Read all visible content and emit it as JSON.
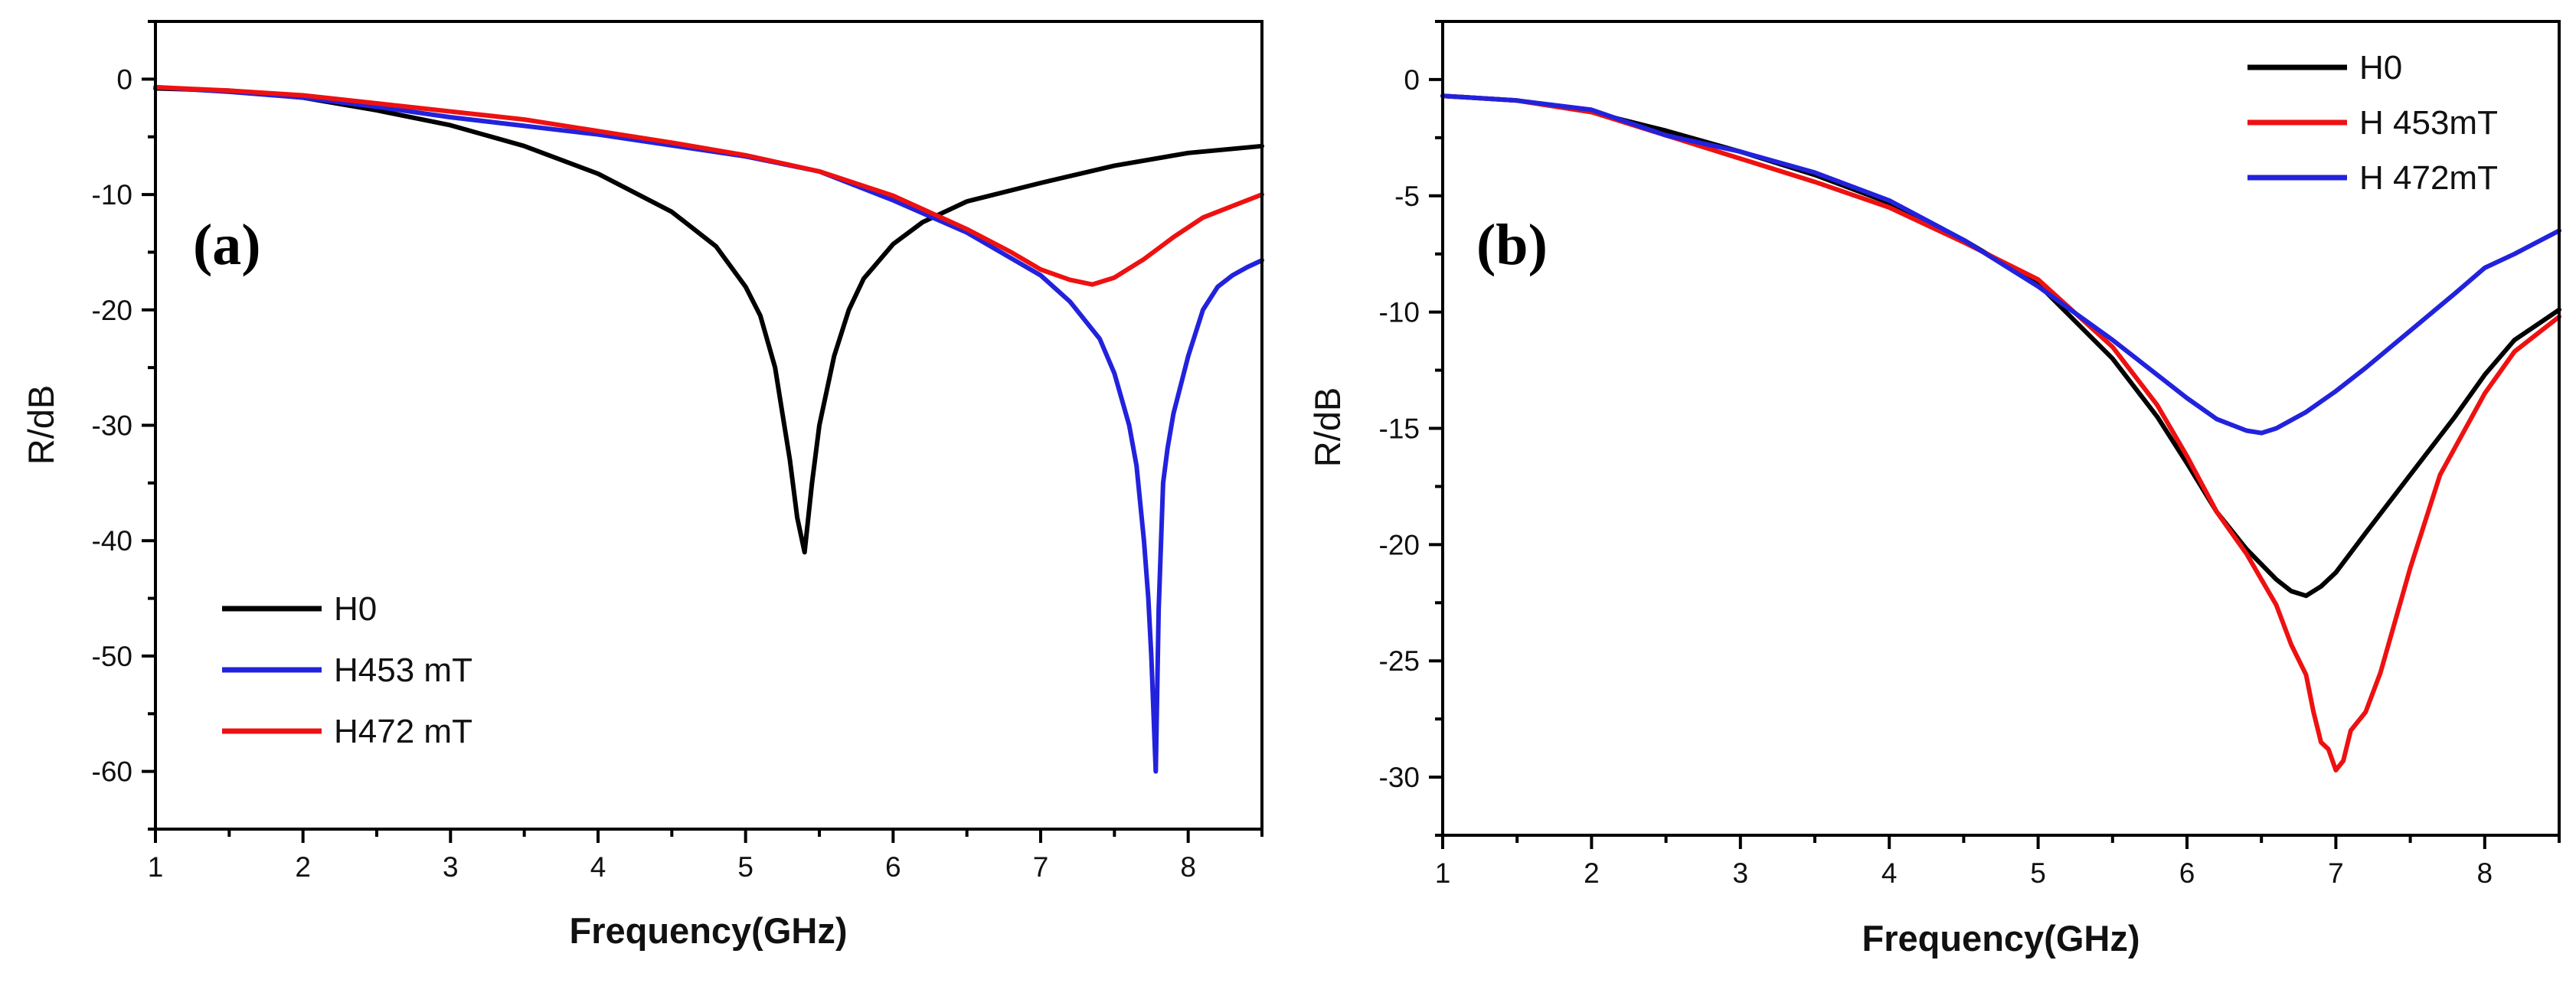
{
  "chart_data": [
    {
      "type": "line",
      "panel_label": "(a)",
      "xlabel": "Frequency(GHz)",
      "ylabel": "R/dB",
      "xlim": [
        1,
        8.5
      ],
      "ylim": [
        -65,
        5
      ],
      "xticks": [
        "1",
        "2",
        "3",
        "4",
        "5",
        "6",
        "7",
        "8"
      ],
      "yticks": [
        "0",
        "-10",
        "-20",
        "-30",
        "-40",
        "-50",
        "-60"
      ],
      "legend_position": "bottom-left",
      "series": [
        {
          "name": "H0",
          "color": "#000000",
          "x": [
            1,
            1.5,
            2,
            2.5,
            3,
            3.5,
            4,
            4.5,
            4.8,
            5.0,
            5.1,
            5.2,
            5.25,
            5.3,
            5.35,
            5.4,
            5.45,
            5.5,
            5.6,
            5.7,
            5.8,
            6.0,
            6.2,
            6.5,
            7.0,
            7.5,
            8.0,
            8.5
          ],
          "y": [
            -0.8,
            -1.0,
            -1.6,
            -2.7,
            -4.0,
            -5.8,
            -8.2,
            -11.5,
            -14.5,
            -18,
            -20.5,
            -25,
            -29,
            -33,
            -38,
            -41,
            -35,
            -30,
            -24,
            -20,
            -17.3,
            -14.3,
            -12.4,
            -10.6,
            -9.0,
            -7.5,
            -6.4,
            -5.8
          ]
        },
        {
          "name": "H453 mT",
          "color": "#2222dd",
          "x": [
            1,
            1.5,
            2,
            2.5,
            3,
            4,
            5,
            5.5,
            6,
            6.5,
            7,
            7.2,
            7.4,
            7.5,
            7.6,
            7.65,
            7.7,
            7.73,
            7.75,
            7.78,
            7.8,
            7.83,
            7.86,
            7.9,
            8.0,
            8.1,
            8.2,
            8.3,
            8.4,
            8.5
          ],
          "y": [
            -0.7,
            -1.1,
            -1.6,
            -2.4,
            -3.3,
            -4.8,
            -6.7,
            -8.0,
            -10.5,
            -13.3,
            -17,
            -19.3,
            -22.5,
            -25.5,
            -30,
            -33.5,
            -40,
            -45,
            -50,
            -60,
            -46,
            -35,
            -32,
            -29,
            -24,
            -20,
            -18,
            -17,
            -16.3,
            -15.7
          ]
        },
        {
          "name": "H472 mT",
          "color": "#ee1111",
          "x": [
            1,
            1.5,
            2,
            2.5,
            3,
            3.5,
            4,
            4.5,
            5,
            5.5,
            6,
            6.5,
            6.8,
            7.0,
            7.2,
            7.35,
            7.5,
            7.7,
            7.9,
            8.1,
            8.3,
            8.5
          ],
          "y": [
            -0.7,
            -1.0,
            -1.4,
            -2.1,
            -2.8,
            -3.5,
            -4.5,
            -5.5,
            -6.6,
            -8.0,
            -10.1,
            -13.0,
            -15.0,
            -16.5,
            -17.4,
            -17.8,
            -17.2,
            -15.6,
            -13.7,
            -12.0,
            -11.0,
            -10.0
          ]
        }
      ]
    },
    {
      "type": "line",
      "panel_label": "(b)",
      "xlabel": "Frequency(GHz)",
      "ylabel": "R/dB",
      "xlim": [
        1,
        8.5
      ],
      "ylim": [
        -32.5,
        2.5
      ],
      "xticks": [
        "1",
        "2",
        "3",
        "4",
        "5",
        "6",
        "7",
        "8"
      ],
      "yticks": [
        "0",
        "-5",
        "-10",
        "-15",
        "-20",
        "-25",
        "-30"
      ],
      "legend_position": "top-right",
      "series": [
        {
          "name": "H0",
          "color": "#000000",
          "x": [
            1,
            1.5,
            2,
            2.5,
            3,
            3.5,
            4,
            4.5,
            5,
            5.5,
            5.8,
            6.0,
            6.2,
            6.4,
            6.6,
            6.7,
            6.8,
            6.9,
            7.0,
            7.2,
            7.5,
            7.8,
            8.0,
            8.2,
            8.5
          ],
          "y": [
            -0.7,
            -0.9,
            -1.4,
            -2.2,
            -3.1,
            -4.1,
            -5.3,
            -6.9,
            -8.8,
            -12.0,
            -14.5,
            -16.5,
            -18.6,
            -20.2,
            -21.5,
            -22.0,
            -22.2,
            -21.8,
            -21.2,
            -19.5,
            -17.0,
            -14.5,
            -12.7,
            -11.2,
            -9.9
          ]
        },
        {
          "name": "H 453mT",
          "color": "#ee1111",
          "x": [
            1,
            1.5,
            2,
            2.5,
            3,
            3.5,
            4,
            4.5,
            5,
            5.5,
            5.8,
            6.0,
            6.2,
            6.4,
            6.6,
            6.7,
            6.8,
            6.85,
            6.9,
            6.95,
            7.0,
            7.05,
            7.1,
            7.2,
            7.3,
            7.5,
            7.7,
            8.0,
            8.2,
            8.5
          ],
          "y": [
            -0.7,
            -0.9,
            -1.4,
            -2.4,
            -3.4,
            -4.4,
            -5.5,
            -7.0,
            -8.6,
            -11.5,
            -14.0,
            -16.2,
            -18.6,
            -20.4,
            -22.6,
            -24.3,
            -25.6,
            -27.2,
            -28.5,
            -28.8,
            -29.7,
            -29.3,
            -28.0,
            -27.2,
            -25.5,
            -21.0,
            -17.0,
            -13.5,
            -11.7,
            -10.2
          ]
        },
        {
          "name": "H 472mT",
          "color": "#2222dd",
          "x": [
            1,
            1.5,
            2,
            2.5,
            3,
            3.5,
            4,
            4.5,
            5,
            5.5,
            6,
            6.2,
            6.4,
            6.5,
            6.6,
            6.8,
            7.0,
            7.2,
            7.5,
            7.8,
            8.0,
            8.2,
            8.5
          ],
          "y": [
            -0.7,
            -0.9,
            -1.3,
            -2.4,
            -3.1,
            -4.0,
            -5.2,
            -6.9,
            -8.9,
            -11.2,
            -13.7,
            -14.6,
            -15.1,
            -15.2,
            -15.0,
            -14.3,
            -13.4,
            -12.4,
            -10.8,
            -9.2,
            -8.1,
            -7.5,
            -6.5
          ]
        }
      ]
    }
  ]
}
